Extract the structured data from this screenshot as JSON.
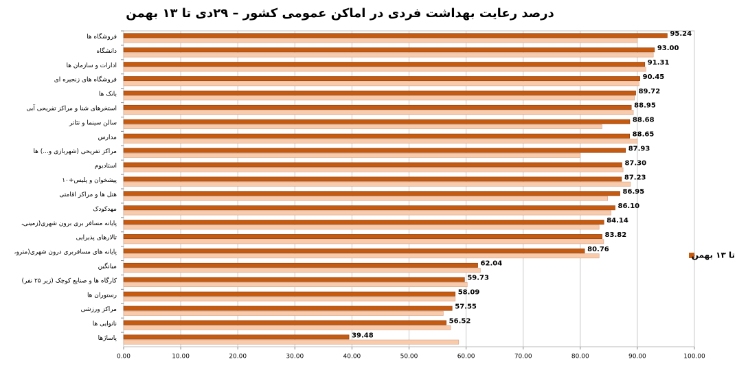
{
  "chart_data": {
    "type": "bar",
    "orientation": "horizontal",
    "title": "درصد رعایت بهداشت فردی در اماکن عمومی کشور  –  ۲۹دی تا ۱۳ بهمن",
    "categories": [
      "فروشگاه ها",
      "دانشگاه",
      "ادارات و سازمان ها",
      "فروشگاه های زنجیره ای",
      "بانک ها",
      "استخرهای شنا و مراکز تفریحی آبی",
      "سالن سینما و تئاتر",
      "مدارس",
      "مراکز تفریحی (شهربازی و...) ها",
      "استادیوم",
      "پیشخوان و پلیس+۱۰",
      "هتل ها و مراکز اقامتی",
      "مهدکودک",
      "پایانه مسافر بری برون شهری(زمینی، ",
      "تالارهای پذیرایی",
      "پایانه های مسافربری درون شهری(مترو، ",
      "میانگین",
      "کارگاه ها و صنایع کوچک (زیر ۲۵ نفر)",
      "رستوران ها",
      "مراکز ورزشی",
      "نانوایی ها",
      "پاساژها"
    ],
    "series": [
      {
        "name": "تا ۱۳ بهمن",
        "color": "#c55a11",
        "values": [
          95.24,
          93.0,
          91.31,
          90.45,
          89.72,
          88.95,
          88.68,
          88.65,
          87.93,
          87.3,
          87.23,
          86.95,
          86.1,
          84.14,
          83.82,
          80.76,
          62.04,
          59.73,
          58.09,
          57.55,
          56.52,
          39.48
        ],
        "value_labels": [
          "95.24",
          "93.00",
          "91.31",
          "90.45",
          "89.72",
          "88.95",
          "88.68",
          "88.65",
          "87.93",
          "87.30",
          "87.23",
          "86.95",
          "86.10",
          "84.14",
          "83.82",
          "80.76",
          "62.04",
          "59.73",
          "58.09",
          "57.55",
          "56.52",
          "39.48"
        ]
      },
      {
        "color": "#f8cbad",
        "values": [
          90.0,
          92.8,
          91.5,
          90.3,
          89.5,
          89.3,
          83.8,
          90.0,
          80.0,
          87.5,
          88.8,
          84.8,
          85.4,
          83.3,
          84.1,
          83.3,
          62.5,
          60.2,
          58.1,
          56.0,
          57.3,
          58.7
        ]
      }
    ],
    "xlim": [
      0,
      100
    ],
    "xticks": [
      {
        "value": 0,
        "label": "0.00"
      },
      {
        "value": 10,
        "label": "10.00"
      },
      {
        "value": 20,
        "label": "20.00"
      },
      {
        "value": 30,
        "label": "30.00"
      },
      {
        "value": 40,
        "label": "40.00"
      },
      {
        "value": 50,
        "label": "50.00"
      },
      {
        "value": 60,
        "label": "60.00"
      },
      {
        "value": 70,
        "label": "70.00"
      },
      {
        "value": 80,
        "label": "80.00"
      },
      {
        "value": 90,
        "label": "90.00"
      },
      {
        "value": 100,
        "label": "100.00"
      }
    ],
    "grid": true,
    "legend": "right"
  }
}
